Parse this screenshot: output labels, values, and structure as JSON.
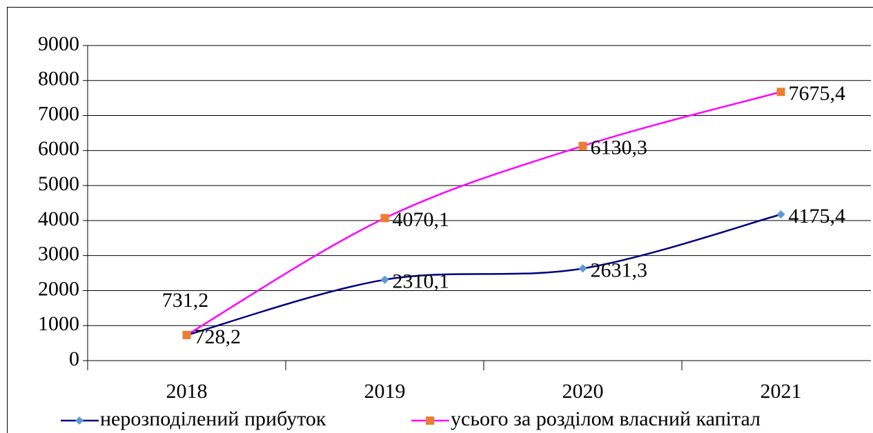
{
  "chart_data": {
    "type": "line",
    "categories": [
      "2018",
      "2019",
      "2020",
      "2021"
    ],
    "series": [
      {
        "name": "нерозподілений прибуток",
        "color": "#000080",
        "marker_color": "#5b9bd5",
        "marker": "diamond",
        "values": [
          728.2,
          2310.1,
          2631.3,
          4175.4
        ],
        "value_labels": [
          "728,2",
          "2310,1",
          "2631,3",
          "4175,4"
        ]
      },
      {
        "name": "усього за розділом власний капітал",
        "color": "#ff00ff",
        "marker_color": "#ed7d31",
        "marker": "square",
        "values": [
          731.2,
          4070.1,
          6130.3,
          7675.4
        ],
        "value_labels": [
          "731,2",
          "4070,1",
          "6130,3",
          "7675,4"
        ]
      }
    ],
    "ylim": [
      0,
      9000
    ],
    "yticks": [
      0,
      1000,
      2000,
      3000,
      4000,
      5000,
      6000,
      7000,
      8000,
      9000
    ],
    "grid": true,
    "legend": "bottom"
  }
}
